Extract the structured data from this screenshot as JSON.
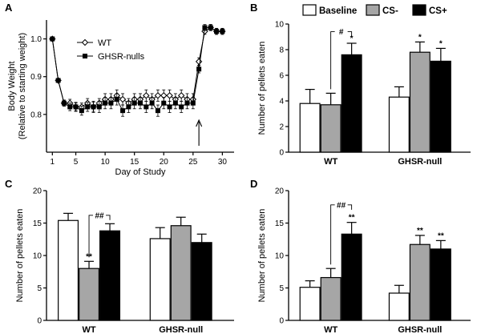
{
  "bar_legend": [
    {
      "name": "Baseline",
      "color": "#ffffff"
    },
    {
      "name": "CS-",
      "color": "#a6a6a6"
    },
    {
      "name": "CS+",
      "color": "#000000"
    }
  ],
  "chart_data": [
    {
      "panel": "A",
      "type": "line",
      "xlabel": "Day of Study",
      "ylabel": "Body Weight",
      "ylabel2": "(Relative to starting weight)",
      "xlim": [
        0,
        32
      ],
      "ylim": [
        0.7,
        1.05
      ],
      "xticks": [
        1,
        5,
        10,
        15,
        20,
        25,
        30
      ],
      "yticks": [
        0.8,
        0.9,
        1.0
      ],
      "yticklabels": [
        "0.8",
        "0.9",
        "1.0"
      ],
      "legend": "top-left",
      "arrow_day": 26,
      "x": [
        1,
        2,
        3,
        4,
        5,
        6,
        7,
        8,
        9,
        10,
        11,
        12,
        13,
        14,
        15,
        16,
        17,
        18,
        19,
        20,
        21,
        22,
        23,
        24,
        25,
        26,
        27,
        28,
        29,
        30
      ],
      "series": [
        {
          "name": "WT",
          "marker": "diamond",
          "values": [
            1.0,
            0.89,
            0.83,
            0.83,
            0.82,
            0.82,
            0.83,
            0.82,
            0.83,
            0.84,
            0.84,
            0.85,
            0.84,
            0.83,
            0.84,
            0.84,
            0.85,
            0.84,
            0.85,
            0.85,
            0.85,
            0.84,
            0.85,
            0.84,
            0.84,
            0.94,
            1.02,
            1.03,
            1.02,
            1.02
          ],
          "errors": [
            0.003,
            0.005,
            0.008,
            0.01,
            0.01,
            0.01,
            0.012,
            0.012,
            0.012,
            0.015,
            0.015,
            0.015,
            0.015,
            0.012,
            0.015,
            0.015,
            0.015,
            0.015,
            0.015,
            0.015,
            0.015,
            0.015,
            0.015,
            0.015,
            0.015,
            0.01,
            0.008,
            0.008,
            0.008,
            0.008
          ]
        },
        {
          "name": "GHSR-nulls",
          "marker": "square",
          "values": [
            1.0,
            0.89,
            0.83,
            0.82,
            0.82,
            0.81,
            0.82,
            0.82,
            0.82,
            0.83,
            0.83,
            0.84,
            0.81,
            0.82,
            0.83,
            0.83,
            0.82,
            0.83,
            0.81,
            0.83,
            0.82,
            0.83,
            0.82,
            0.83,
            0.83,
            0.92,
            1.03,
            1.03,
            1.02,
            1.02
          ],
          "errors": [
            0.003,
            0.005,
            0.008,
            0.01,
            0.012,
            0.012,
            0.012,
            0.015,
            0.015,
            0.015,
            0.015,
            0.015,
            0.015,
            0.015,
            0.015,
            0.015,
            0.015,
            0.015,
            0.015,
            0.015,
            0.015,
            0.015,
            0.015,
            0.015,
            0.015,
            0.01,
            0.008,
            0.008,
            0.008,
            0.008
          ]
        }
      ]
    },
    {
      "panel": "B",
      "type": "bar",
      "ylabel": "Number of pellets eaten",
      "ylim": [
        0,
        10
      ],
      "yticks": [
        0,
        2,
        4,
        6,
        8,
        10
      ],
      "categories": [
        "WT",
        "GHSR-null"
      ],
      "series": [
        {
          "name": "Baseline",
          "values": [
            3.8,
            4.3
          ],
          "errors": [
            1.1,
            0.8
          ],
          "marks": [
            "",
            ""
          ]
        },
        {
          "name": "CS-",
          "values": [
            3.7,
            7.8
          ],
          "errors": [
            0.9,
            0.8
          ],
          "marks": [
            "",
            "*"
          ]
        },
        {
          "name": "CS+",
          "values": [
            7.6,
            7.1
          ],
          "errors": [
            0.9,
            1.0
          ],
          "marks": [
            "*",
            "*"
          ]
        }
      ],
      "bracket": {
        "label": "#",
        "category": 0,
        "from": 1,
        "to": 2,
        "level": 9.4
      }
    },
    {
      "panel": "C",
      "type": "bar",
      "ylabel": "Number of pellets eaten",
      "ylim": [
        0,
        20
      ],
      "yticks": [
        0,
        5,
        10,
        15,
        20
      ],
      "categories": [
        "WT",
        "GHSR-null"
      ],
      "series": [
        {
          "name": "Baseline",
          "values": [
            15.4,
            12.6
          ],
          "errors": [
            1.1,
            1.7
          ],
          "marks": [
            "",
            ""
          ]
        },
        {
          "name": "CS-",
          "values": [
            8.0,
            14.6
          ],
          "errors": [
            1.1,
            1.3
          ],
          "marks": [
            "**",
            ""
          ]
        },
        {
          "name": "CS+",
          "values": [
            13.8,
            12.0
          ],
          "errors": [
            1.1,
            1.3
          ],
          "marks": [
            "",
            ""
          ]
        }
      ],
      "bracket": {
        "label": "##",
        "category": 0,
        "from": 1,
        "to": 2,
        "level": 16.2
      }
    },
    {
      "panel": "D",
      "type": "bar",
      "ylabel": "Number of pellets eaten",
      "ylim": [
        0,
        20
      ],
      "yticks": [
        0,
        5,
        10,
        15,
        20
      ],
      "categories": [
        "WT",
        "GHSR-null"
      ],
      "series": [
        {
          "name": "Baseline",
          "values": [
            5.1,
            4.2
          ],
          "errors": [
            1.0,
            1.2
          ],
          "marks": [
            "",
            ""
          ]
        },
        {
          "name": "CS-",
          "values": [
            6.6,
            11.7
          ],
          "errors": [
            1.4,
            1.4
          ],
          "marks": [
            "",
            "**"
          ]
        },
        {
          "name": "CS+",
          "values": [
            13.3,
            11.0
          ],
          "errors": [
            1.8,
            1.3
          ],
          "marks": [
            "**",
            "**"
          ]
        }
      ],
      "bracket": {
        "label": "##",
        "category": 0,
        "from": 1,
        "to": 2,
        "level": 17.8
      }
    }
  ]
}
